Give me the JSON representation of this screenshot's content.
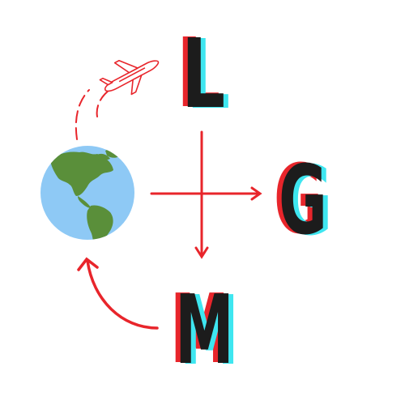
{
  "letters": {
    "top": "L",
    "right": "G",
    "bottom": "M"
  },
  "icons": {
    "globe": "globe-americas-icon",
    "plane": "airplane-icon"
  },
  "colors": {
    "background": "#ffffff",
    "letter_fill": "#1c1c1c",
    "letter_shadow_red": "#e8252b",
    "letter_shadow_cyan": "#3ee6f0",
    "arrow": "#e8252b",
    "ocean": "#8ec9f5",
    "land": "#5a8f3a",
    "plane_outline": "#e8252b"
  }
}
